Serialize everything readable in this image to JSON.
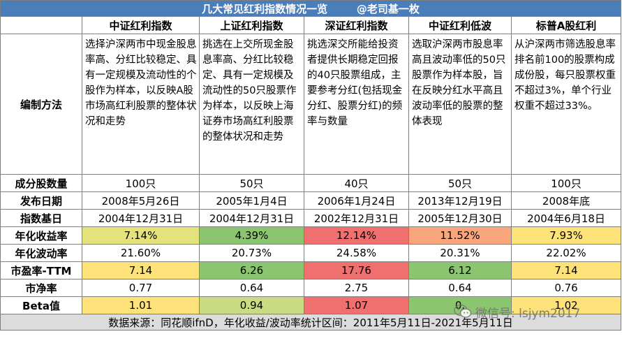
{
  "title": "几大常见红利指数情况一览        @老司基一枚",
  "columns": [
    "",
    "中证红利指数",
    "上证红利指数",
    "深证红利指数",
    "中证红利低波",
    "标普A股红利"
  ],
  "method_label": "编制方法",
  "methods": [
    "选择沪深两市中现金股息率高、分红比较稳定、具有一定规模及流动性的个股作为样本，以反映A股市场高红利股票的整体状况和走势",
    "挑选在上交所现金股息率高、分红比较稳定、具有一定规模及流动性的50只股票作为样本，以反映上海证券市场高红利股票的整体状况和走势",
    "挑选深交所能给投资者提供长期稳定回报的40只股票组成，主要参考分红(包括现金分红、股票分红)的频率与数量",
    "选取沪深两市股息率高且波动率低的50只股票作为样本股，旨在反映分红水平高且波动率低的股票的整体表现",
    "从沪深两市筛选股息率排名前100的股票构成成份股，每只股票权重不超过3%，单个行业权重不超过33%。"
  ],
  "rows": [
    {
      "label": "成分股数量",
      "values": [
        "100只",
        "50只",
        "40只",
        "50只",
        "100只"
      ]
    },
    {
      "label": "发布日期",
      "values": [
        "2008年5月26日",
        "2005年1月4日",
        "2006年1月24日",
        "2013年12月19日",
        "2008年底"
      ]
    },
    {
      "label": "指数基日",
      "values": [
        "2004年12月31日",
        "2004年12月31日",
        "2002年12月31日",
        "2005年12月30日",
        "2004年6月18日"
      ]
    },
    {
      "label": "年化收益率",
      "values": [
        "7.14%",
        "4.39%",
        "12.14%",
        "11.52%",
        "7.93%"
      ]
    },
    {
      "label": "年化波动率",
      "values": [
        "21.60%",
        "20.73%",
        "24.58%",
        "20.31%",
        "22.02%"
      ]
    },
    {
      "label": "市盈率-TTM",
      "values": [
        "7.14",
        "6.26",
        "17.76",
        "6.12",
        "7.14"
      ]
    },
    {
      "label": "市净率",
      "values": [
        "0.77",
        "0.64",
        "2.75",
        "0.64",
        "0.76"
      ]
    },
    {
      "label": "Beta值",
      "values": [
        "1.01",
        "0.94",
        "1.07",
        "0.",
        "1.02"
      ]
    }
  ],
  "cell_colors": {
    "年化收益率": [
      "#e4e27c",
      "#8cc56f",
      "#f07070",
      "#f9a67c",
      "#fde27a"
    ],
    "市盈率-TTM": [
      "#fde27a",
      "#8cc56f",
      "#f07070",
      "#8cc56f",
      "#fde27a"
    ],
    "Beta值": [
      "#fde27a",
      "#c9dc82",
      "#f07070",
      "#8cc56f",
      "#fde27a"
    ]
  },
  "footer": "数据来源：同花顺ifnD，年化收益/波动率统计区间：2011年5月11日-2021年5月11日",
  "watermark": "微信号: lsjym2017",
  "colors": {
    "title_bg": "#4a7ebb",
    "footer_bg": "#dcdcdc"
  }
}
